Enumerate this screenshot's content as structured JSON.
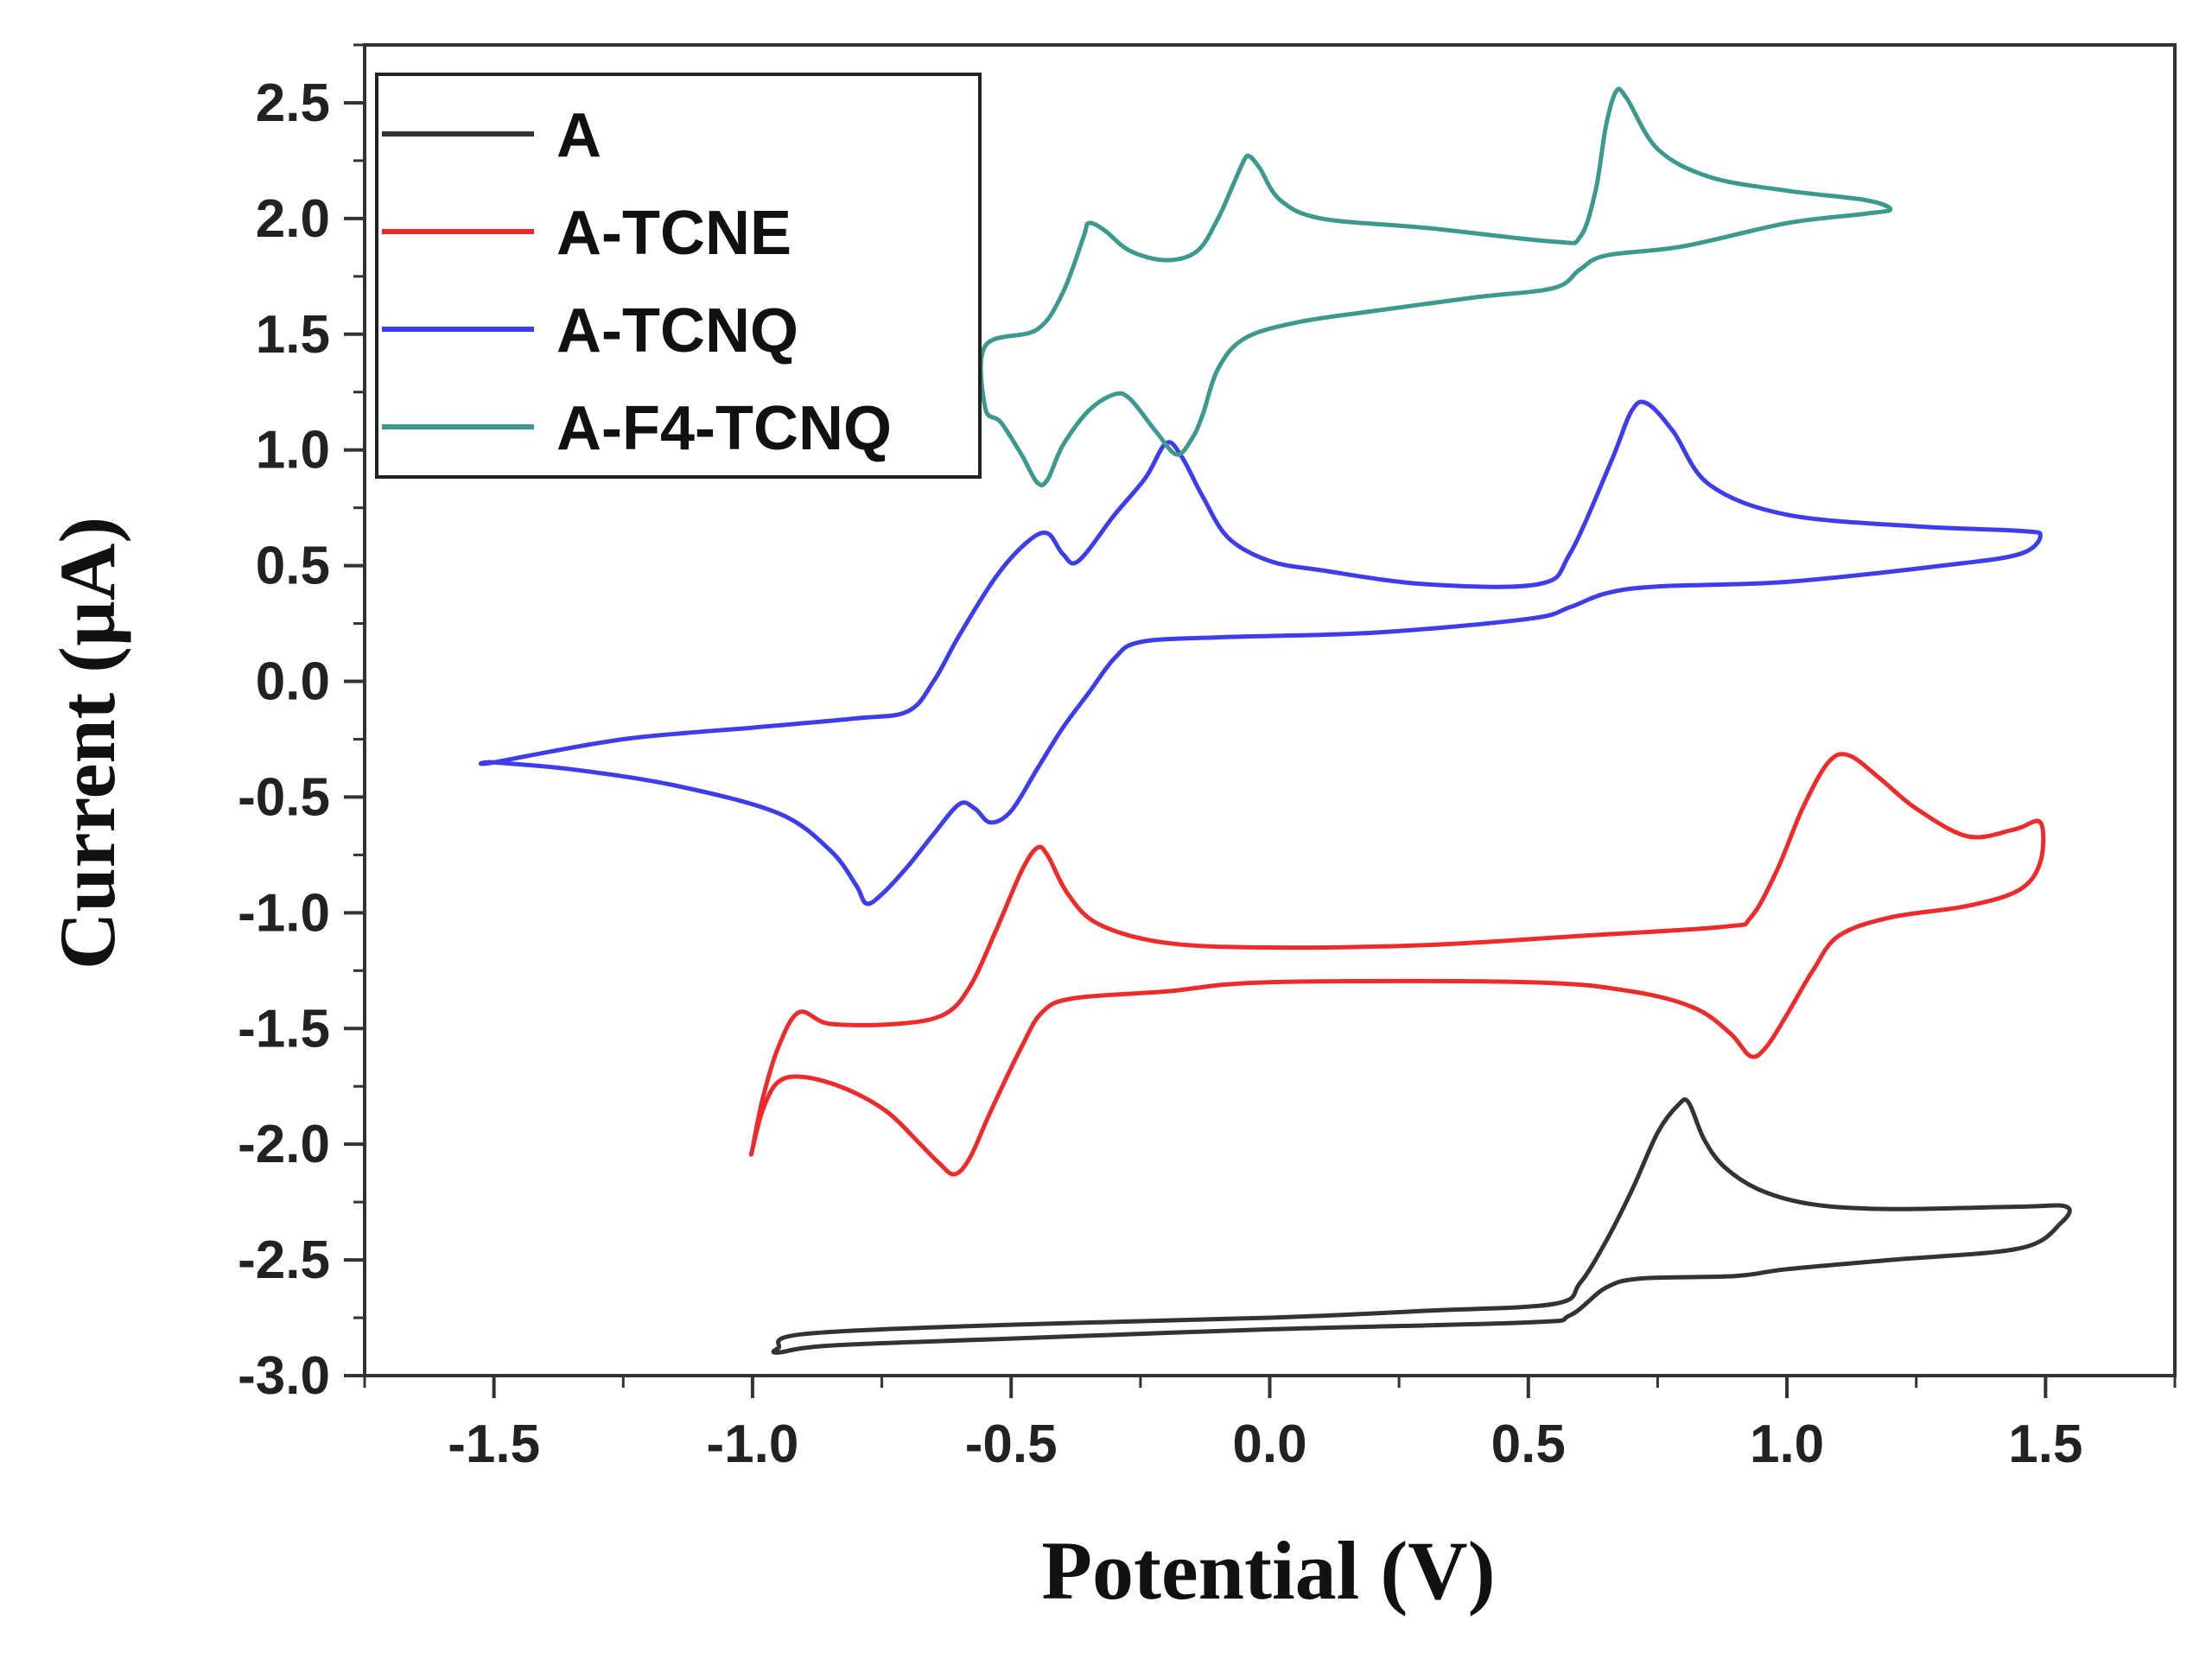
{
  "chart_data": {
    "type": "line",
    "title": "",
    "xlabel": "Potential (V)",
    "ylabel": "Current (µA)",
    "xlim": [
      -1.75,
      1.75
    ],
    "ylim": [
      -3.0,
      2.75
    ],
    "x_ticks": [
      -1.5,
      -1.0,
      -0.5,
      0.0,
      0.5,
      1.0,
      1.5
    ],
    "x_tick_labels": [
      "-1.5",
      "-1.0",
      "-0.5",
      "0.0",
      "0.5",
      "1.0",
      "1.5"
    ],
    "y_ticks": [
      -3.0,
      -2.5,
      -2.0,
      -1.5,
      -1.0,
      -0.5,
      0.0,
      0.5,
      1.0,
      1.5,
      2.0,
      2.5
    ],
    "y_tick_labels": [
      "-3.0",
      "-2.5",
      "-2.0",
      "-1.5",
      "-1.0",
      "-0.5",
      "0.0",
      "0.5",
      "1.0",
      "1.5",
      "2.0",
      "2.5"
    ],
    "grid": false,
    "legend_position": "top-left",
    "series": [
      {
        "name": "A",
        "color": "#333333",
        "points": [
          [
            -0.95,
            -2.9
          ],
          [
            -0.85,
            -2.87
          ],
          [
            -0.5,
            -2.84
          ],
          [
            0.0,
            -2.8
          ],
          [
            0.5,
            -2.77
          ],
          [
            0.58,
            -2.74
          ],
          [
            0.65,
            -2.62
          ],
          [
            0.72,
            -2.58
          ],
          [
            0.9,
            -2.57
          ],
          [
            1.0,
            -2.54
          ],
          [
            1.2,
            -2.5
          ],
          [
            1.45,
            -2.45
          ],
          [
            1.53,
            -2.34
          ],
          [
            1.54,
            -2.27
          ],
          [
            1.45,
            -2.27
          ],
          [
            1.2,
            -2.28
          ],
          [
            1.05,
            -2.26
          ],
          [
            0.95,
            -2.2
          ],
          [
            0.88,
            -2.1
          ],
          [
            0.84,
            -1.98
          ],
          [
            0.81,
            -1.82
          ],
          [
            0.79,
            -1.83
          ],
          [
            0.75,
            -1.95
          ],
          [
            0.7,
            -2.2
          ],
          [
            0.65,
            -2.42
          ],
          [
            0.6,
            -2.6
          ],
          [
            0.55,
            -2.69
          ],
          [
            0.3,
            -2.72
          ],
          [
            0.0,
            -2.75
          ],
          [
            -0.5,
            -2.78
          ],
          [
            -0.9,
            -2.82
          ],
          [
            -0.95,
            -2.88
          ]
        ]
      },
      {
        "name": "A-TCNE",
        "color": "#ee2b2b",
        "points": [
          [
            -1.0,
            -2.02
          ],
          [
            -0.98,
            -1.85
          ],
          [
            -0.95,
            -1.73
          ],
          [
            -0.9,
            -1.71
          ],
          [
            -0.82,
            -1.76
          ],
          [
            -0.74,
            -1.86
          ],
          [
            -0.68,
            -1.99
          ],
          [
            -0.64,
            -2.08
          ],
          [
            -0.61,
            -2.13
          ],
          [
            -0.58,
            -2.06
          ],
          [
            -0.54,
            -1.86
          ],
          [
            -0.48,
            -1.58
          ],
          [
            -0.44,
            -1.43
          ],
          [
            -0.38,
            -1.37
          ],
          [
            -0.2,
            -1.34
          ],
          [
            0.0,
            -1.3
          ],
          [
            0.5,
            -1.3
          ],
          [
            0.7,
            -1.34
          ],
          [
            0.82,
            -1.41
          ],
          [
            0.89,
            -1.52
          ],
          [
            0.93,
            -1.62
          ],
          [
            0.96,
            -1.58
          ],
          [
            1.0,
            -1.44
          ],
          [
            1.05,
            -1.25
          ],
          [
            1.1,
            -1.1
          ],
          [
            1.2,
            -1.02
          ],
          [
            1.35,
            -0.97
          ],
          [
            1.45,
            -0.9
          ],
          [
            1.49,
            -0.78
          ],
          [
            1.49,
            -0.61
          ],
          [
            1.44,
            -0.64
          ],
          [
            1.35,
            -0.67
          ],
          [
            1.25,
            -0.55
          ],
          [
            1.18,
            -0.42
          ],
          [
            1.12,
            -0.32
          ],
          [
            1.08,
            -0.35
          ],
          [
            1.03,
            -0.55
          ],
          [
            0.98,
            -0.82
          ],
          [
            0.93,
            -1.02
          ],
          [
            0.88,
            -1.06
          ],
          [
            0.6,
            -1.1
          ],
          [
            0.3,
            -1.14
          ],
          [
            0.0,
            -1.15
          ],
          [
            -0.2,
            -1.13
          ],
          [
            -0.33,
            -1.05
          ],
          [
            -0.39,
            -0.92
          ],
          [
            -0.43,
            -0.75
          ],
          [
            -0.45,
            -0.72
          ],
          [
            -0.48,
            -0.82
          ],
          [
            -0.53,
            -1.08
          ],
          [
            -0.58,
            -1.32
          ],
          [
            -0.63,
            -1.44
          ],
          [
            -0.72,
            -1.48
          ],
          [
            -0.85,
            -1.48
          ],
          [
            -0.91,
            -1.43
          ],
          [
            -0.95,
            -1.58
          ],
          [
            -0.98,
            -1.8
          ],
          [
            -1.0,
            -2.02
          ]
        ]
      },
      {
        "name": "A-TCNQ",
        "color": "#3d3ded",
        "points": [
          [
            -1.5,
            -0.35
          ],
          [
            -1.35,
            -0.38
          ],
          [
            -1.15,
            -0.45
          ],
          [
            -0.95,
            -0.57
          ],
          [
            -0.85,
            -0.73
          ],
          [
            -0.8,
            -0.88
          ],
          [
            -0.78,
            -0.96
          ],
          [
            -0.75,
            -0.92
          ],
          [
            -0.7,
            -0.8
          ],
          [
            -0.65,
            -0.66
          ],
          [
            -0.6,
            -0.53
          ],
          [
            -0.57,
            -0.55
          ],
          [
            -0.54,
            -0.61
          ],
          [
            -0.5,
            -0.56
          ],
          [
            -0.45,
            -0.38
          ],
          [
            -0.4,
            -0.2
          ],
          [
            -0.35,
            -0.05
          ],
          [
            -0.3,
            0.1
          ],
          [
            -0.25,
            0.17
          ],
          [
            -0.1,
            0.19
          ],
          [
            0.2,
            0.21
          ],
          [
            0.5,
            0.27
          ],
          [
            0.58,
            0.32
          ],
          [
            0.65,
            0.38
          ],
          [
            0.75,
            0.41
          ],
          [
            1.0,
            0.43
          ],
          [
            1.3,
            0.5
          ],
          [
            1.45,
            0.55
          ],
          [
            1.49,
            0.63
          ],
          [
            1.45,
            0.65
          ],
          [
            1.25,
            0.67
          ],
          [
            1.0,
            0.72
          ],
          [
            0.85,
            0.85
          ],
          [
            0.78,
            1.08
          ],
          [
            0.73,
            1.2
          ],
          [
            0.7,
            1.17
          ],
          [
            0.66,
            0.95
          ],
          [
            0.58,
            0.55
          ],
          [
            0.52,
            0.42
          ],
          [
            0.3,
            0.42
          ],
          [
            0.1,
            0.48
          ],
          [
            0.0,
            0.52
          ],
          [
            -0.08,
            0.62
          ],
          [
            -0.13,
            0.8
          ],
          [
            -0.17,
            0.97
          ],
          [
            -0.2,
            1.03
          ],
          [
            -0.24,
            0.88
          ],
          [
            -0.3,
            0.72
          ],
          [
            -0.37,
            0.52
          ],
          [
            -0.4,
            0.55
          ],
          [
            -0.43,
            0.64
          ],
          [
            -0.47,
            0.6
          ],
          [
            -0.53,
            0.45
          ],
          [
            -0.6,
            0.2
          ],
          [
            -0.65,
            0.0
          ],
          [
            -0.7,
            -0.13
          ],
          [
            -0.8,
            -0.16
          ],
          [
            -1.0,
            -0.2
          ],
          [
            -1.25,
            -0.25
          ],
          [
            -1.5,
            -0.35
          ]
        ]
      },
      {
        "name": "A-F4-TCNQ",
        "color": "#3b9a8d",
        "points": [
          [
            -0.55,
            1.45
          ],
          [
            -0.45,
            1.52
          ],
          [
            -0.4,
            1.68
          ],
          [
            -0.36,
            1.92
          ],
          [
            -0.35,
            1.98
          ],
          [
            -0.32,
            1.95
          ],
          [
            -0.27,
            1.86
          ],
          [
            -0.2,
            1.82
          ],
          [
            -0.14,
            1.86
          ],
          [
            -0.1,
            2.0
          ],
          [
            -0.07,
            2.15
          ],
          [
            -0.05,
            2.25
          ],
          [
            -0.04,
            2.27
          ],
          [
            -0.02,
            2.22
          ],
          [
            0.02,
            2.08
          ],
          [
            0.1,
            2.0
          ],
          [
            0.3,
            1.96
          ],
          [
            0.55,
            1.9
          ],
          [
            0.6,
            1.92
          ],
          [
            0.63,
            2.12
          ],
          [
            0.65,
            2.4
          ],
          [
            0.67,
            2.55
          ],
          [
            0.69,
            2.52
          ],
          [
            0.75,
            2.3
          ],
          [
            0.85,
            2.18
          ],
          [
            1.0,
            2.12
          ],
          [
            1.15,
            2.08
          ],
          [
            1.2,
            2.04
          ],
          [
            1.15,
            2.02
          ],
          [
            1.0,
            1.98
          ],
          [
            0.8,
            1.88
          ],
          [
            0.65,
            1.84
          ],
          [
            0.6,
            1.78
          ],
          [
            0.55,
            1.7
          ],
          [
            0.4,
            1.66
          ],
          [
            0.2,
            1.6
          ],
          [
            0.05,
            1.55
          ],
          [
            -0.05,
            1.48
          ],
          [
            -0.1,
            1.35
          ],
          [
            -0.13,
            1.15
          ],
          [
            -0.15,
            1.05
          ],
          [
            -0.18,
            0.98
          ],
          [
            -0.22,
            1.08
          ],
          [
            -0.27,
            1.22
          ],
          [
            -0.3,
            1.24
          ],
          [
            -0.35,
            1.17
          ],
          [
            -0.4,
            1.02
          ],
          [
            -0.43,
            0.87
          ],
          [
            -0.45,
            0.86
          ],
          [
            -0.48,
            0.98
          ],
          [
            -0.52,
            1.12
          ],
          [
            -0.55,
            1.18
          ]
        ]
      }
    ]
  }
}
